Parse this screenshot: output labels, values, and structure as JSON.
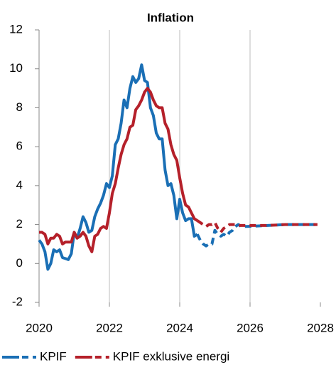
{
  "chart_data": {
    "type": "line",
    "title": "Inflation",
    "x": [
      2020,
      2020.083,
      2020.167,
      2020.25,
      2020.333,
      2020.417,
      2020.5,
      2020.583,
      2020.667,
      2020.75,
      2020.833,
      2020.917,
      2021,
      2021.083,
      2021.167,
      2021.25,
      2021.333,
      2021.417,
      2021.5,
      2021.583,
      2021.667,
      2021.75,
      2021.833,
      2021.917,
      2022,
      2022.083,
      2022.167,
      2022.25,
      2022.333,
      2022.417,
      2022.5,
      2022.583,
      2022.667,
      2022.75,
      2022.833,
      2022.917,
      2023,
      2023.083,
      2023.167,
      2023.25,
      2023.333,
      2023.417,
      2023.5,
      2023.583,
      2023.667,
      2023.75,
      2023.833,
      2023.917,
      2024,
      2024.083,
      2024.167,
      2024.25,
      2024.333,
      2024.417,
      2024.5,
      2024.583,
      2024.667,
      2024.75,
      2024.833,
      2024.917,
      2025,
      2025.083,
      2025.167,
      2025.25,
      2025.333,
      2025.417,
      2025.5,
      2025.583,
      2025.667,
      2025.75,
      2025.833,
      2025.917,
      2026.5,
      2027,
      2027.5,
      2027.917
    ],
    "series": [
      {
        "name": "KPIF",
        "color": "#1a6fb5",
        "values": [
          1.2,
          1.0,
          0.6,
          -0.3,
          0.0,
          0.7,
          0.6,
          0.7,
          0.3,
          0.25,
          0.2,
          0.5,
          1.6,
          1.3,
          1.8,
          2.4,
          2.1,
          1.6,
          1.7,
          2.4,
          2.8,
          3.1,
          3.5,
          4.1,
          3.9,
          4.5,
          6.1,
          6.4,
          7.2,
          8.4,
          8.0,
          9.0,
          9.6,
          9.3,
          9.5,
          10.2,
          9.4,
          9.3,
          8.0,
          7.6,
          6.7,
          6.4,
          6.4,
          4.8,
          4.0,
          4.1,
          3.5,
          2.3,
          3.3,
          2.6,
          2.2,
          2.3,
          2.3,
          1.4,
          1.5,
          null,
          null,
          null,
          null,
          null,
          null,
          null,
          null,
          null,
          null,
          null,
          null,
          null,
          null,
          null,
          null,
          null,
          null,
          null,
          null,
          null
        ],
        "forecast": [
          null,
          null,
          null,
          null,
          null,
          null,
          null,
          null,
          null,
          null,
          null,
          null,
          null,
          null,
          null,
          null,
          null,
          null,
          null,
          null,
          null,
          null,
          null,
          null,
          null,
          null,
          null,
          null,
          null,
          null,
          null,
          null,
          null,
          null,
          null,
          null,
          null,
          null,
          null,
          null,
          null,
          null,
          null,
          null,
          null,
          null,
          null,
          null,
          null,
          null,
          null,
          null,
          null,
          null,
          1.5,
          1.2,
          1.0,
          0.9,
          1.0,
          1.0,
          1.7,
          1.5,
          1.4,
          1.5,
          1.4,
          1.6,
          1.7,
          1.9,
          2.0,
          1.9,
          1.9,
          1.9,
          1.95,
          2.0,
          2.0,
          2.0
        ]
      },
      {
        "name": "KPIF exklusive energi",
        "color": "#b5202a",
        "values": [
          1.6,
          1.6,
          1.5,
          1.0,
          1.3,
          1.3,
          1.5,
          1.4,
          1.0,
          1.1,
          1.1,
          1.1,
          1.6,
          1.3,
          1.4,
          1.6,
          1.4,
          0.9,
          0.6,
          1.4,
          1.5,
          1.8,
          1.9,
          1.8,
          2.6,
          3.6,
          4.1,
          4.9,
          5.6,
          6.1,
          6.4,
          7.0,
          7.1,
          7.9,
          8.1,
          8.4,
          8.8,
          9.0,
          8.8,
          8.4,
          8.1,
          8.0,
          8.0,
          7.2,
          6.9,
          6.1,
          5.6,
          5.3,
          4.4,
          3.6,
          3.0,
          2.9,
          2.6,
          2.3,
          2.2,
          null,
          null,
          null,
          null,
          null,
          null,
          null,
          null,
          null,
          null,
          null,
          null,
          null,
          null,
          null,
          null,
          null,
          null,
          null,
          null,
          null
        ],
        "forecast": [
          null,
          null,
          null,
          null,
          null,
          null,
          null,
          null,
          null,
          null,
          null,
          null,
          null,
          null,
          null,
          null,
          null,
          null,
          null,
          null,
          null,
          null,
          null,
          null,
          null,
          null,
          null,
          null,
          null,
          null,
          null,
          null,
          null,
          null,
          null,
          null,
          null,
          null,
          null,
          null,
          null,
          null,
          null,
          null,
          null,
          null,
          null,
          null,
          null,
          null,
          null,
          null,
          null,
          null,
          2.2,
          2.1,
          2.0,
          1.9,
          2.0,
          2.0,
          2.1,
          1.8,
          1.6,
          1.8,
          1.9,
          2.0,
          2.0,
          2.0,
          1.95,
          1.95,
          1.95,
          1.95,
          1.95,
          2.0,
          2.0,
          2.0
        ]
      }
    ],
    "xlim": [
      2020,
      2028
    ],
    "xticks": [
      2020,
      2022,
      2024,
      2026,
      2028
    ],
    "ylim": [
      -2,
      12
    ],
    "yticks": [
      -2,
      0,
      2,
      4,
      6,
      8,
      10,
      12
    ],
    "grid": "x",
    "legend": "bottom"
  }
}
